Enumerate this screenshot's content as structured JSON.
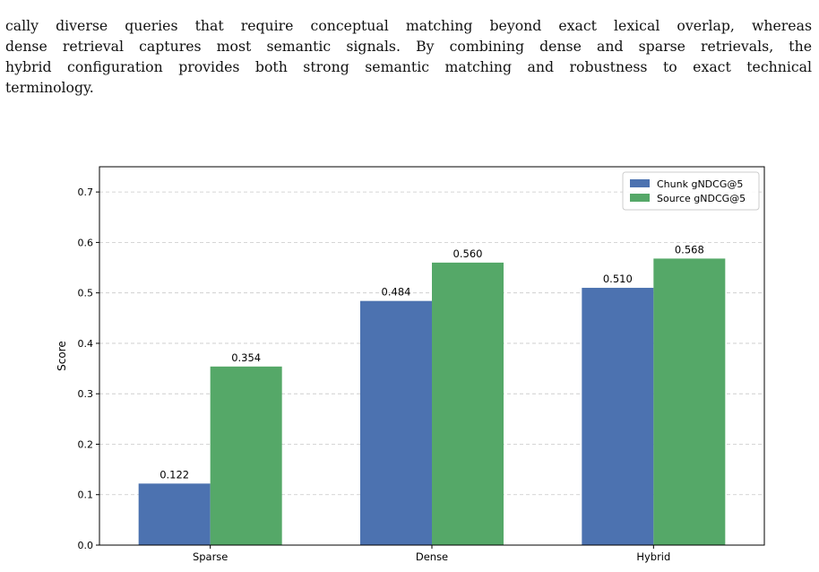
{
  "paragraph": {
    "lines": [
      "cally diverse queries that require conceptual matching beyond exact lexical overlap, whereas",
      "dense retrieval captures most semantic signals. By combining dense and sparse retrievals, the",
      "hybrid configuration provides both strong semantic matching and robustness to exact technical",
      "terminology."
    ]
  },
  "colors": {
    "chunk": "#4c72b0",
    "source": "#55a868",
    "grid": "#b0b0b0"
  },
  "chart_data": {
    "type": "bar",
    "categories": [
      "Sparse",
      "Dense",
      "Hybrid"
    ],
    "series": [
      {
        "name": "Chunk gNDCG@5",
        "values": [
          0.122,
          0.484,
          0.51
        ],
        "labels": [
          "0.122",
          "0.484",
          "0.510"
        ]
      },
      {
        "name": "Source gNDCG@5",
        "values": [
          0.354,
          0.56,
          0.568
        ],
        "labels": [
          "0.354",
          "0.560",
          "0.568"
        ]
      }
    ],
    "ylabel": "Score",
    "ylim": [
      0,
      0.75
    ],
    "yticks": [
      0.0,
      0.1,
      0.2,
      0.3,
      0.4,
      0.5,
      0.6,
      0.7
    ],
    "ytick_labels": [
      "0.0",
      "0.1",
      "0.2",
      "0.3",
      "0.4",
      "0.5",
      "0.6",
      "0.7"
    ],
    "grid": "horizontal-dashed",
    "legend": "top-right"
  }
}
